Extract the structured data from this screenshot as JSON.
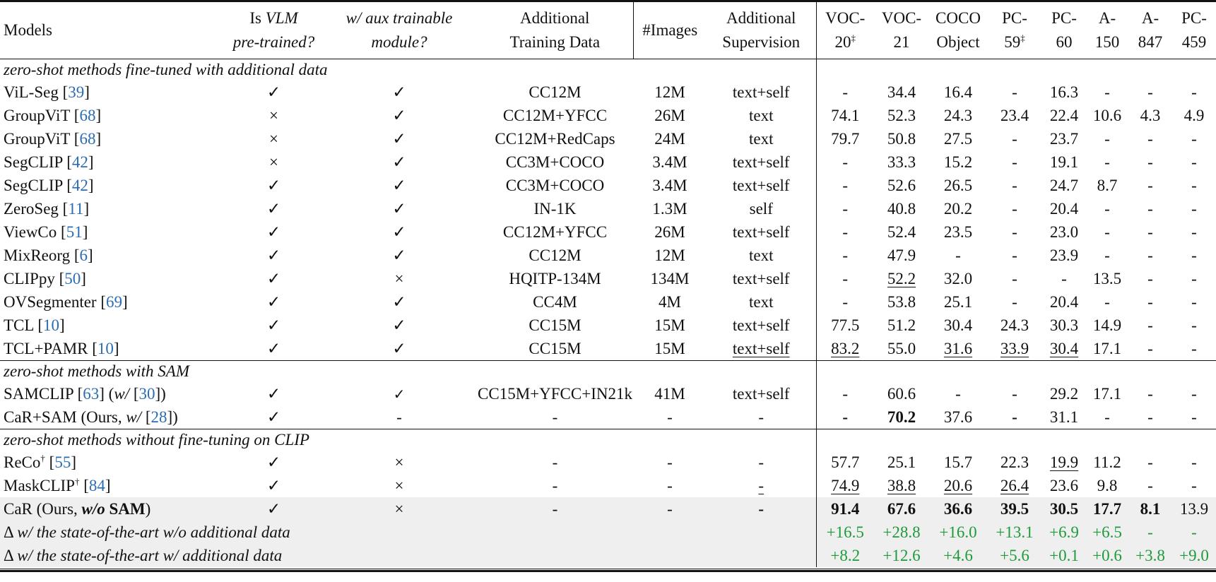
{
  "header": [
    {
      "lines": [
        [
          {
            "t": "Models"
          }
        ]
      ],
      "align": "left"
    },
    {
      "lines": [
        [
          {
            "t": "Is "
          },
          {
            "t": "VLM",
            "s": "i"
          }
        ],
        [
          {
            "t": "pre-trained?",
            "s": "i"
          }
        ]
      ]
    },
    {
      "lines": [
        [
          {
            "t": "w/ aux trainable",
            "s": "i"
          }
        ],
        [
          {
            "t": "module?",
            "s": "i"
          }
        ]
      ]
    },
    {
      "lines": [
        [
          {
            "t": "Additional"
          }
        ],
        [
          {
            "t": "Training Data"
          }
        ]
      ]
    },
    {
      "lines": [
        [
          {
            "t": "#Images"
          }
        ]
      ]
    },
    {
      "lines": [
        [
          {
            "t": "Additional"
          }
        ],
        [
          {
            "t": "Supervision"
          }
        ]
      ]
    },
    {
      "lines": [
        [
          {
            "t": "VOC-"
          }
        ],
        [
          {
            "t": "20"
          },
          {
            "t": "‡",
            "s": "sup"
          }
        ]
      ]
    },
    {
      "lines": [
        [
          {
            "t": "VOC-"
          }
        ],
        [
          {
            "t": "21"
          }
        ]
      ]
    },
    {
      "lines": [
        [
          {
            "t": "COCO"
          }
        ],
        [
          {
            "t": "Object"
          }
        ]
      ]
    },
    {
      "lines": [
        [
          {
            "t": "PC-"
          }
        ],
        [
          {
            "t": "59"
          },
          {
            "t": "‡",
            "s": "sup"
          }
        ]
      ]
    },
    {
      "lines": [
        [
          {
            "t": "PC-"
          }
        ],
        [
          {
            "t": "60"
          }
        ]
      ]
    },
    {
      "lines": [
        [
          {
            "t": "A-"
          }
        ],
        [
          {
            "t": "150"
          }
        ]
      ]
    },
    {
      "lines": [
        [
          {
            "t": "A-"
          }
        ],
        [
          {
            "t": "847"
          }
        ]
      ]
    },
    {
      "lines": [
        [
          {
            "t": "PC-"
          }
        ],
        [
          {
            "t": "459"
          }
        ]
      ]
    }
  ],
  "marks": {
    "check": "✓",
    "cross": "×"
  },
  "colors": {
    "citation": "#2a6db5",
    "delta": "#1f9a3a",
    "highlight_row": "#efefef"
  },
  "sections": [
    {
      "label": "zero-shot methods fine-tuned with additional data",
      "rows": [
        {
          "model": [
            {
              "t": "ViL-Seg ["
            },
            {
              "t": "39",
              "s": "cite"
            },
            {
              "t": "]"
            }
          ],
          "cells": [
            "✓",
            "✓",
            "CC12M",
            "12M",
            "text+self",
            "-",
            "34.4",
            "16.4",
            "-",
            "16.3",
            "-",
            "-",
            "-"
          ]
        },
        {
          "model": [
            {
              "t": "GroupViT ["
            },
            {
              "t": "68",
              "s": "cite"
            },
            {
              "t": "]"
            }
          ],
          "cells": [
            "×",
            "✓",
            "CC12M+YFCC",
            "26M",
            "text",
            "74.1",
            "52.3",
            "24.3",
            "23.4",
            "22.4",
            "10.6",
            "4.3",
            "4.9"
          ]
        },
        {
          "model": [
            {
              "t": "GroupViT ["
            },
            {
              "t": "68",
              "s": "cite"
            },
            {
              "t": "]"
            }
          ],
          "cells": [
            "×",
            "✓",
            "CC12M+RedCaps",
            "24M",
            "text",
            "79.7",
            "50.8",
            "27.5",
            "-",
            "23.7",
            "-",
            "-",
            "-"
          ]
        },
        {
          "model": [
            {
              "t": "SegCLIP ["
            },
            {
              "t": "42",
              "s": "cite"
            },
            {
              "t": "]"
            }
          ],
          "cells": [
            "×",
            "✓",
            "CC3M+COCO",
            "3.4M",
            "text+self",
            "-",
            "33.3",
            "15.2",
            "-",
            "19.1",
            "-",
            "-",
            "-"
          ]
        },
        {
          "model": [
            {
              "t": "SegCLIP ["
            },
            {
              "t": "42",
              "s": "cite"
            },
            {
              "t": "]"
            }
          ],
          "cells": [
            "✓",
            "✓",
            "CC3M+COCO",
            "3.4M",
            "text+self",
            "-",
            "52.6",
            "26.5",
            "-",
            "24.7",
            "8.7",
            "-",
            "-"
          ]
        },
        {
          "model": [
            {
              "t": "ZeroSeg ["
            },
            {
              "t": "11",
              "s": "cite"
            },
            {
              "t": "]"
            }
          ],
          "cells": [
            "✓",
            "✓",
            "IN-1K",
            "1.3M",
            "self",
            "-",
            "40.8",
            "20.2",
            "-",
            "20.4",
            "-",
            "-",
            "-"
          ]
        },
        {
          "model": [
            {
              "t": "ViewCo ["
            },
            {
              "t": "51",
              "s": "cite"
            },
            {
              "t": "]"
            }
          ],
          "cells": [
            "✓",
            "✓",
            "CC12M+YFCC",
            "26M",
            "text+self",
            "-",
            "52.4",
            "23.5",
            "-",
            "23.0",
            "-",
            "-",
            "-"
          ]
        },
        {
          "model": [
            {
              "t": "MixReorg ["
            },
            {
              "t": "6",
              "s": "cite"
            },
            {
              "t": "]"
            }
          ],
          "cells": [
            "✓",
            "✓",
            "CC12M",
            "12M",
            "text",
            "-",
            "47.9",
            "-",
            "-",
            "23.9",
            "-",
            "-",
            "-"
          ]
        },
        {
          "model": [
            {
              "t": "CLIPpy ["
            },
            {
              "t": "50",
              "s": "cite"
            },
            {
              "t": "]"
            }
          ],
          "cells": [
            "✓",
            "×",
            "HQITP-134M",
            "134M",
            "text+self",
            "-",
            "52.2",
            "32.0",
            "-",
            "-",
            "13.5",
            "-",
            "-"
          ],
          "underline": [
            7
          ]
        },
        {
          "model": [
            {
              "t": "OVSegmenter ["
            },
            {
              "t": "69",
              "s": "cite"
            },
            {
              "t": "]"
            }
          ],
          "cells": [
            "✓",
            "✓",
            "CC4M",
            "4M",
            "text",
            "-",
            "53.8",
            "25.1",
            "-",
            "20.4",
            "-",
            "-",
            "-"
          ]
        },
        {
          "model": [
            {
              "t": "TCL ["
            },
            {
              "t": "10",
              "s": "cite"
            },
            {
              "t": "]"
            }
          ],
          "cells": [
            "✓",
            "✓",
            "CC15M",
            "15M",
            "text+self",
            "77.5",
            "51.2",
            "30.4",
            "24.3",
            "30.3",
            "14.9",
            "-",
            "-"
          ]
        },
        {
          "model": [
            {
              "t": "TCL+PAMR ["
            },
            {
              "t": "10",
              "s": "cite"
            },
            {
              "t": "]"
            }
          ],
          "cells": [
            "✓",
            "✓",
            "CC15M",
            "15M",
            "text+self",
            "83.2",
            "55.0",
            "31.6",
            "33.9",
            "30.4",
            "17.1",
            "-",
            "-"
          ],
          "underline": [
            5,
            6,
            8,
            9,
            10
          ]
        }
      ]
    },
    {
      "label": "zero-shot methods with SAM",
      "rows": [
        {
          "model": [
            {
              "t": "SAMCLIP ["
            },
            {
              "t": "63",
              "s": "cite"
            },
            {
              "t": "] ("
            },
            {
              "t": "w/",
              "s": "i"
            },
            {
              "t": " ["
            },
            {
              "t": "30",
              "s": "cite"
            },
            {
              "t": "])"
            }
          ],
          "cells": [
            "✓",
            "✓",
            "CC15M+YFCC+IN21k",
            "41M",
            "text+self",
            "-",
            "60.6",
            "-",
            "-",
            "29.2",
            "17.1",
            "-",
            "-"
          ],
          "small": [
            2
          ]
        },
        {
          "model": [
            {
              "t": "CaR+SAM (Ours, "
            },
            {
              "t": "w/",
              "s": "i"
            },
            {
              "t": " ["
            },
            {
              "t": "28",
              "s": "cite"
            },
            {
              "t": "])"
            }
          ],
          "cells": [
            "✓",
            "-",
            "-",
            "-",
            "-",
            "-",
            "70.2",
            "37.6",
            "-",
            "31.1",
            "-",
            "-",
            "-"
          ],
          "bold": [
            6,
            7,
            9
          ]
        }
      ]
    },
    {
      "label": "zero-shot methods without fine-tuning on CLIP",
      "rows": [
        {
          "model": [
            {
              "t": "ReCo"
            },
            {
              "t": "†",
              "s": "sup"
            },
            {
              "t": " ["
            },
            {
              "t": "55",
              "s": "cite"
            },
            {
              "t": "]"
            }
          ],
          "cells": [
            "✓",
            "×",
            "-",
            "-",
            "-",
            "57.7",
            "25.1",
            "15.7",
            "22.3",
            "19.9",
            "11.2",
            "-",
            "-"
          ],
          "underline": [
            10
          ]
        },
        {
          "model": [
            {
              "t": "MaskCLIP"
            },
            {
              "t": "†",
              "s": "sup"
            },
            {
              "t": " ["
            },
            {
              "t": "84",
              "s": "cite"
            },
            {
              "t": "]"
            }
          ],
          "cells": [
            "✓",
            "×",
            "-",
            "-",
            "-",
            "74.9",
            "38.8",
            "20.6",
            "26.4",
            "23.6",
            "9.8",
            "-",
            "-"
          ],
          "underline": [
            5,
            6,
            7,
            8,
            9
          ]
        },
        {
          "model": [
            {
              "t": "CaR (Ours, "
            },
            {
              "t": "w/o",
              "s": "bi"
            },
            {
              "t": " "
            },
            {
              "t": "SAM",
              "s": "b"
            },
            {
              "t": ")"
            }
          ],
          "cells": [
            "✓",
            "×",
            "-",
            "-",
            "-",
            "91.4",
            "67.6",
            "36.6",
            "39.5",
            "30.5",
            "17.7",
            "8.1",
            "13.9"
          ],
          "bold": [
            5,
            6,
            7,
            8,
            9,
            10,
            11,
            12
          ],
          "highlight": true
        }
      ]
    }
  ],
  "delta_rows": [
    {
      "label": [
        {
          "t": "Δ "
        },
        {
          "t": "w/ the state-of-the-art w/o additional data",
          "s": "i"
        }
      ],
      "cells": [
        "+16.5",
        "+28.8",
        "+16.0",
        "+13.1",
        "+6.9",
        "+6.5",
        "-",
        "-"
      ]
    },
    {
      "label": [
        {
          "t": "Δ "
        },
        {
          "t": "w/ the state-of-the-art w/ additional data",
          "s": "i"
        }
      ],
      "cells": [
        "+8.2",
        "+12.6",
        "+4.6",
        "+5.6",
        "+0.1",
        "+0.6",
        "+3.8",
        "+9.0"
      ]
    }
  ]
}
